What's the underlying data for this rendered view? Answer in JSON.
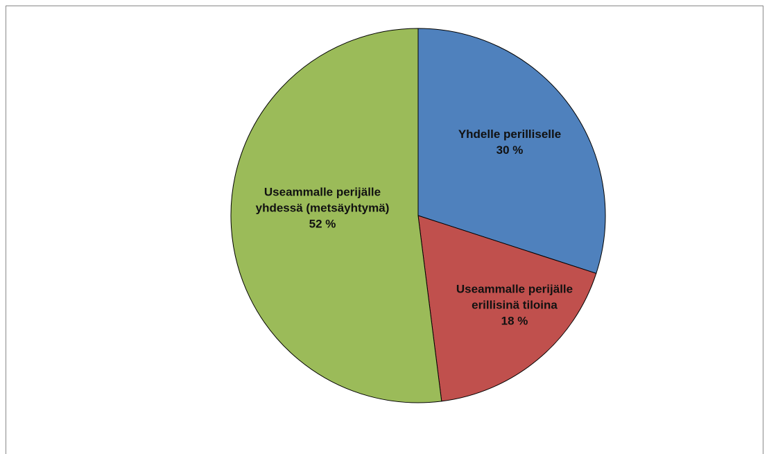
{
  "chart_data": {
    "type": "pie",
    "categories": [
      "Yhdelle perilliselle",
      "Useammalle perijälle erillisinä tiloina",
      "Useammalle perijälle yhdessä (metsäyhtymä)"
    ],
    "values": [
      30,
      18,
      52
    ],
    "value_labels": [
      "30 %",
      "18 %",
      "52 %"
    ],
    "colors": [
      "#4f81bd",
      "#c0504d",
      "#9bbb59"
    ]
  }
}
